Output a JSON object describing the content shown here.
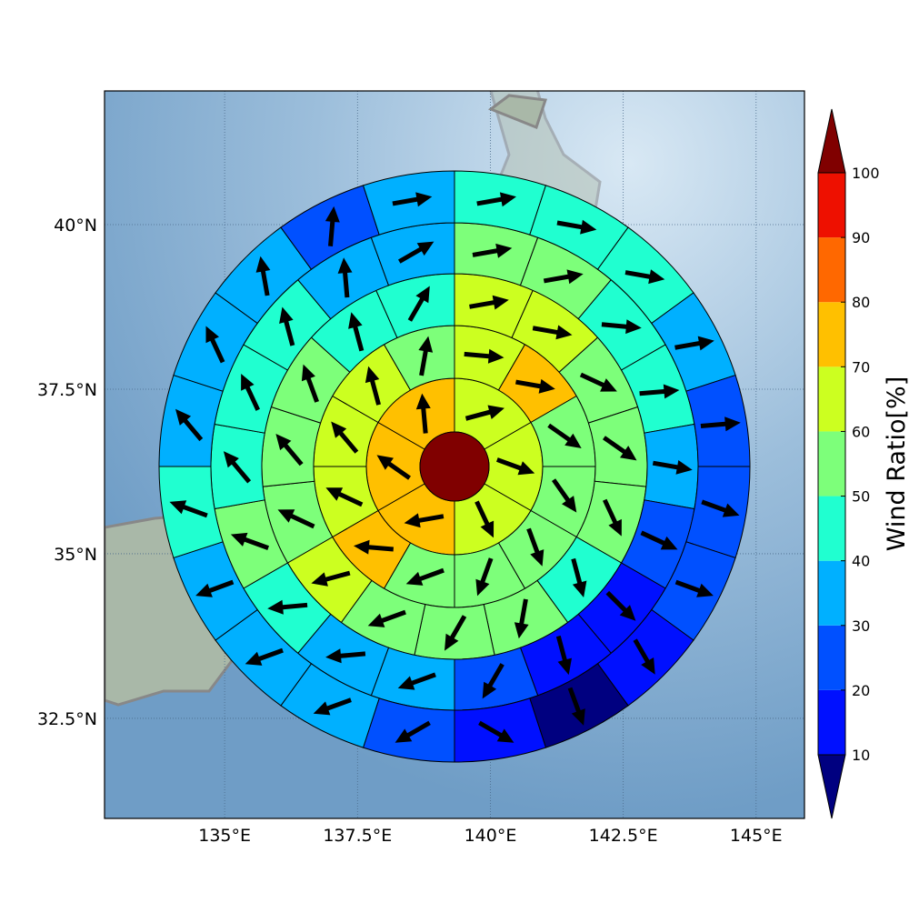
{
  "chart_data": {
    "type": "polar-sector-map",
    "xticks": [
      {
        "value": 135,
        "label": "135°E"
      },
      {
        "value": 137.5,
        "label": "137.5°E"
      },
      {
        "value": 140,
        "label": "140°E"
      },
      {
        "value": 142.5,
        "label": "142.5°E"
      },
      {
        "value": 145,
        "label": "145°E"
      }
    ],
    "yticks": [
      {
        "value": 32.5,
        "label": "32.5°N"
      },
      {
        "value": 35,
        "label": "35°N"
      },
      {
        "value": 37.5,
        "label": "37.5°N"
      },
      {
        "value": 40,
        "label": "40°N"
      }
    ],
    "xlim": [
      132.74,
      145.91
    ],
    "ylim": [
      30.98,
      42.03
    ],
    "grid": true,
    "center_value": 105,
    "rings": [
      {
        "values": [
          65,
          65,
          62,
          75,
          75,
          75
        ],
        "directions": [
          75,
          110,
          155,
          260,
          305,
          355
        ]
      },
      {
        "values": [
          65,
          75,
          55,
          55,
          55,
          55,
          55,
          75,
          65,
          65,
          65,
          55
        ],
        "directions": [
          95,
          100,
          125,
          145,
          160,
          200,
          250,
          275,
          295,
          320,
          345,
          10
        ]
      },
      {
        "values": [
          65,
          65,
          55,
          55,
          55,
          45,
          55,
          55,
          55,
          65,
          55,
          55,
          55,
          45,
          45
        ],
        "directions": [
          80,
          100,
          115,
          125,
          155,
          165,
          190,
          210,
          250,
          255,
          295,
          320,
          340,
          345,
          30
        ]
      },
      {
        "values": [
          55,
          55,
          45,
          45,
          35,
          25,
          15,
          15,
          25,
          35,
          35,
          45,
          55,
          45,
          45,
          45,
          35,
          35
        ],
        "directions": [
          80,
          80,
          95,
          85,
          100,
          115,
          135,
          165,
          210,
          250,
          265,
          265,
          290,
          320,
          335,
          345,
          355,
          60
        ]
      },
      {
        "values": [
          45,
          45,
          45,
          35,
          25,
          25,
          22,
          15,
          8,
          15,
          25,
          35,
          35,
          35,
          45,
          35,
          35,
          35,
          25,
          35
        ],
        "directions": [
          80,
          100,
          100,
          80,
          85,
          110,
          110,
          150,
          160,
          120,
          240,
          250,
          250,
          250,
          290,
          320,
          335,
          350,
          5,
          80
        ]
      }
    ],
    "colorbar": {
      "label": "Wind Ratio[%]",
      "ticks": [
        10,
        20,
        30,
        40,
        50,
        60,
        70,
        80,
        90,
        100
      ],
      "colors": [
        "#0010ff",
        "#0050ff",
        "#00b0ff",
        "#20ffd0",
        "#7dff7a",
        "#ccff20",
        "#ffc000",
        "#ff6800",
        "#ee1000"
      ],
      "under_color": "#000080",
      "over_color": "#800000"
    }
  }
}
